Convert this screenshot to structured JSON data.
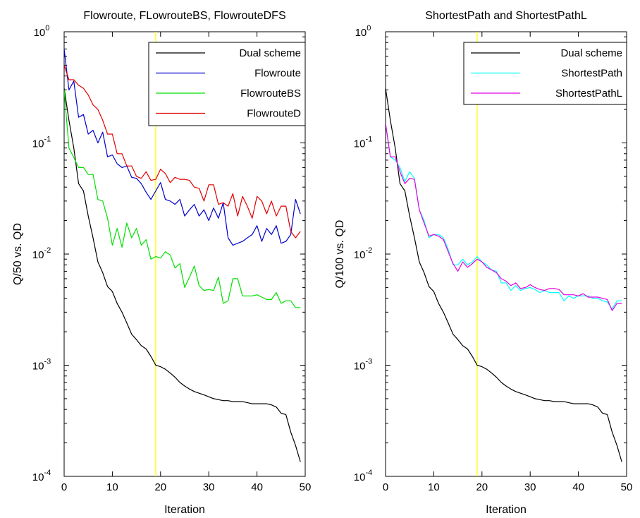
{
  "chart_data": [
    {
      "type": "line",
      "title": "Flowroute, FLowrouteBS, FlowrouteDFS",
      "xlabel": "Iteration",
      "ylabel": "Q/50 vs. QD",
      "xlim": [
        0,
        50
      ],
      "ylim": [
        0.0001,
        1
      ],
      "yscale": "log",
      "grid": false,
      "legend_position": "top-right",
      "x_ticks": [
        "0",
        "10",
        "20",
        "30",
        "40",
        "50"
      ],
      "y_ticks": [
        {
          "base": "10",
          "exp": "-4",
          "value": 0.0001
        },
        {
          "base": "10",
          "exp": "-3",
          "value": 0.001
        },
        {
          "base": "10",
          "exp": "-2",
          "value": 0.01
        },
        {
          "base": "10",
          "exp": "-1",
          "value": 0.1
        },
        {
          "base": "10",
          "exp": "0",
          "value": 1
        }
      ],
      "vline": {
        "x": 19,
        "color": "#ffff00"
      },
      "x": [
        0,
        1,
        2,
        3,
        4,
        5,
        6,
        7,
        8,
        9,
        10,
        11,
        12,
        13,
        14,
        15,
        16,
        17,
        18,
        19,
        20,
        21,
        22,
        23,
        24,
        25,
        26,
        27,
        28,
        29,
        30,
        31,
        32,
        33,
        34,
        35,
        36,
        37,
        38,
        39,
        40,
        41,
        42,
        43,
        44,
        45,
        46,
        47,
        48,
        49
      ],
      "series": [
        {
          "name": "Dual scheme",
          "color": "#000000",
          "values": [
            0.31,
            0.16,
            0.09,
            0.043,
            0.037,
            0.022,
            0.014,
            0.0085,
            0.0068,
            0.0051,
            0.0046,
            0.0036,
            0.003,
            0.0024,
            0.0019,
            0.0017,
            0.0015,
            0.0014,
            0.0012,
            0.001,
            0.00097,
            0.00092,
            0.00085,
            0.00078,
            0.0007,
            0.00065,
            0.00061,
            0.00058,
            0.00056,
            0.00054,
            0.00052,
            0.0005,
            0.00049,
            0.00048,
            0.00048,
            0.00047,
            0.00047,
            0.00047,
            0.00046,
            0.00045,
            0.00045,
            0.00045,
            0.00045,
            0.00044,
            0.00042,
            0.00037,
            0.00036,
            0.00025,
            0.00019,
            0.000135
          ]
        },
        {
          "name": "Flowroute",
          "color": "#0000cc",
          "values": [
            0.7,
            0.3,
            0.36,
            0.17,
            0.18,
            0.12,
            0.13,
            0.1,
            0.125,
            0.075,
            0.078,
            0.065,
            0.06,
            0.062,
            0.049,
            0.048,
            0.043,
            0.036,
            0.031,
            0.037,
            0.044,
            0.031,
            0.03,
            0.028,
            0.031,
            0.022,
            0.025,
            0.028,
            0.022,
            0.025,
            0.02,
            0.026,
            0.021,
            0.029,
            0.014,
            0.012,
            0.0125,
            0.013,
            0.014,
            0.015,
            0.018,
            0.013,
            0.017,
            0.015,
            0.018,
            0.0125,
            0.013,
            0.015,
            0.031,
            0.023
          ]
        },
        {
          "name": "FlowrouteBS",
          "color": "#00e000",
          "values": [
            0.3,
            0.09,
            0.074,
            0.06,
            0.06,
            0.052,
            0.052,
            0.031,
            0.03,
            0.021,
            0.012,
            0.017,
            0.0115,
            0.019,
            0.014,
            0.017,
            0.012,
            0.0135,
            0.009,
            0.0095,
            0.0092,
            0.0105,
            0.0098,
            0.0075,
            0.0082,
            0.005,
            0.0062,
            0.0078,
            0.0052,
            0.0047,
            0.0048,
            0.0047,
            0.0062,
            0.0036,
            0.0038,
            0.006,
            0.006,
            0.0042,
            0.0042,
            0.0042,
            0.0043,
            0.0041,
            0.0039,
            0.0039,
            0.0045,
            0.0036,
            0.0038,
            0.0038,
            0.0033,
            0.0033
          ]
        },
        {
          "name": "FlowrouteD",
          "color": "#e00000",
          "values": [
            0.5,
            0.37,
            0.37,
            0.33,
            0.31,
            0.27,
            0.22,
            0.2,
            0.16,
            0.12,
            0.12,
            0.08,
            0.08,
            0.062,
            0.062,
            0.05,
            0.048,
            0.055,
            0.046,
            0.047,
            0.058,
            0.053,
            0.044,
            0.049,
            0.047,
            0.047,
            0.046,
            0.04,
            0.039,
            0.03,
            0.042,
            0.042,
            0.028,
            0.029,
            0.027,
            0.035,
            0.022,
            0.033,
            0.027,
            0.021,
            0.033,
            0.03,
            0.023,
            0.03,
            0.022,
            0.027,
            0.027,
            0.016,
            0.014,
            0.016
          ]
        }
      ]
    },
    {
      "type": "line",
      "title": "ShortestPath and ShortestPathL",
      "xlabel": "Iteration",
      "ylabel": "Q/100 vs. QD",
      "xlim": [
        0,
        50
      ],
      "ylim": [
        0.0001,
        1
      ],
      "yscale": "log",
      "grid": false,
      "legend_position": "top-right",
      "x_ticks": [
        "0",
        "10",
        "20",
        "30",
        "40",
        "50"
      ],
      "y_ticks": [
        {
          "base": "10",
          "exp": "-4",
          "value": 0.0001
        },
        {
          "base": "10",
          "exp": "-3",
          "value": 0.001
        },
        {
          "base": "10",
          "exp": "-2",
          "value": 0.01
        },
        {
          "base": "10",
          "exp": "-1",
          "value": 0.1
        },
        {
          "base": "10",
          "exp": "0",
          "value": 1
        }
      ],
      "vline": {
        "x": 19,
        "color": "#ffff00"
      },
      "x": [
        0,
        1,
        2,
        3,
        4,
        5,
        6,
        7,
        8,
        9,
        10,
        11,
        12,
        13,
        14,
        15,
        16,
        17,
        18,
        19,
        20,
        21,
        22,
        23,
        24,
        25,
        26,
        27,
        28,
        29,
        30,
        31,
        32,
        33,
        34,
        35,
        36,
        37,
        38,
        39,
        40,
        41,
        42,
        43,
        44,
        45,
        46,
        47,
        48,
        49
      ],
      "series": [
        {
          "name": "Dual scheme",
          "color": "#000000",
          "values": [
            0.31,
            0.16,
            0.09,
            0.043,
            0.037,
            0.022,
            0.014,
            0.0085,
            0.0068,
            0.0051,
            0.0046,
            0.0036,
            0.003,
            0.0024,
            0.0019,
            0.0017,
            0.0015,
            0.0014,
            0.0012,
            0.001,
            0.00097,
            0.00092,
            0.00085,
            0.00078,
            0.0007,
            0.00065,
            0.00061,
            0.00058,
            0.00056,
            0.00054,
            0.00052,
            0.0005,
            0.00049,
            0.00048,
            0.00048,
            0.00047,
            0.00047,
            0.00047,
            0.00046,
            0.00045,
            0.00045,
            0.00045,
            0.00045,
            0.00044,
            0.00042,
            0.00037,
            0.00036,
            0.00025,
            0.00019,
            0.000135
          ]
        },
        {
          "name": "ShortestPath",
          "color": "#00ffff",
          "values": [
            0.15,
            0.075,
            0.07,
            0.06,
            0.045,
            0.055,
            0.048,
            0.025,
            0.02,
            0.014,
            0.015,
            0.015,
            0.014,
            0.011,
            0.008,
            0.008,
            0.009,
            0.008,
            0.0085,
            0.0095,
            0.0085,
            0.008,
            0.0072,
            0.007,
            0.0055,
            0.0055,
            0.0047,
            0.0052,
            0.0047,
            0.0049,
            0.005,
            0.0048,
            0.0045,
            0.0047,
            0.0045,
            0.0045,
            0.0045,
            0.0038,
            0.0042,
            0.004,
            0.0042,
            0.0042,
            0.0042,
            0.004,
            0.004,
            0.0038,
            0.0037,
            0.0032,
            0.0038,
            0.0038
          ]
        },
        {
          "name": "ShortestPathL",
          "color": "#e000e0",
          "values": [
            0.15,
            0.075,
            0.075,
            0.055,
            0.043,
            0.048,
            0.047,
            0.025,
            0.019,
            0.0145,
            0.015,
            0.0145,
            0.0135,
            0.0105,
            0.0082,
            0.007,
            0.0085,
            0.0076,
            0.0082,
            0.009,
            0.0085,
            0.0076,
            0.0072,
            0.0068,
            0.006,
            0.0057,
            0.0052,
            0.0055,
            0.0049,
            0.005,
            0.0053,
            0.005,
            0.0048,
            0.0047,
            0.0049,
            0.0049,
            0.0048,
            0.0043,
            0.0043,
            0.0043,
            0.0042,
            0.0044,
            0.0041,
            0.0041,
            0.0041,
            0.004,
            0.0039,
            0.0031,
            0.0036,
            0.0036
          ]
        }
      ]
    }
  ]
}
